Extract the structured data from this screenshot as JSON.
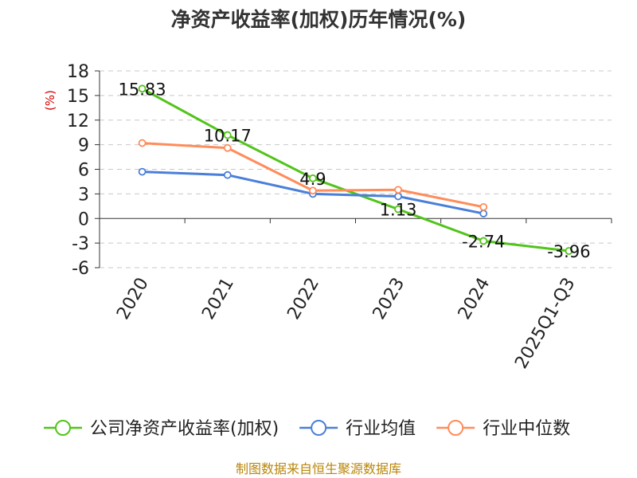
{
  "chart_data": {
    "type": "line",
    "title": "净资产收益率(加权)历年情况(%)",
    "ylabel": "(%)",
    "xlabel": "",
    "categories": [
      "2020",
      "2021",
      "2022",
      "2023",
      "2024",
      "2025Q1-Q3"
    ],
    "ylim": [
      -6,
      18
    ],
    "yticks": [
      18,
      15,
      12,
      9,
      6,
      3,
      0,
      -3,
      -6
    ],
    "ytick_labels": [
      "18",
      "15",
      "12",
      "9",
      "6",
      "3",
      "0",
      "-3",
      "-6"
    ],
    "grid": true,
    "legend_position": "bottom",
    "series": [
      {
        "name": "公司净资产收益率(加权)",
        "color": "#52c41a",
        "values": [
          15.83,
          10.17,
          4.9,
          1.13,
          -2.74,
          -3.96
        ],
        "labels": [
          "15.83",
          "10.17",
          "4.9",
          "1.13",
          "-2.74",
          "-3.96"
        ]
      },
      {
        "name": "行业均值",
        "color": "#4a7fd8",
        "values": [
          5.7,
          5.3,
          3.0,
          2.7,
          0.6,
          null
        ]
      },
      {
        "name": "行业中位数",
        "color": "#ff8c5a",
        "values": [
          9.2,
          8.6,
          3.4,
          3.5,
          1.4,
          null
        ]
      }
    ]
  },
  "source": "制图数据来自恒生聚源数据库"
}
